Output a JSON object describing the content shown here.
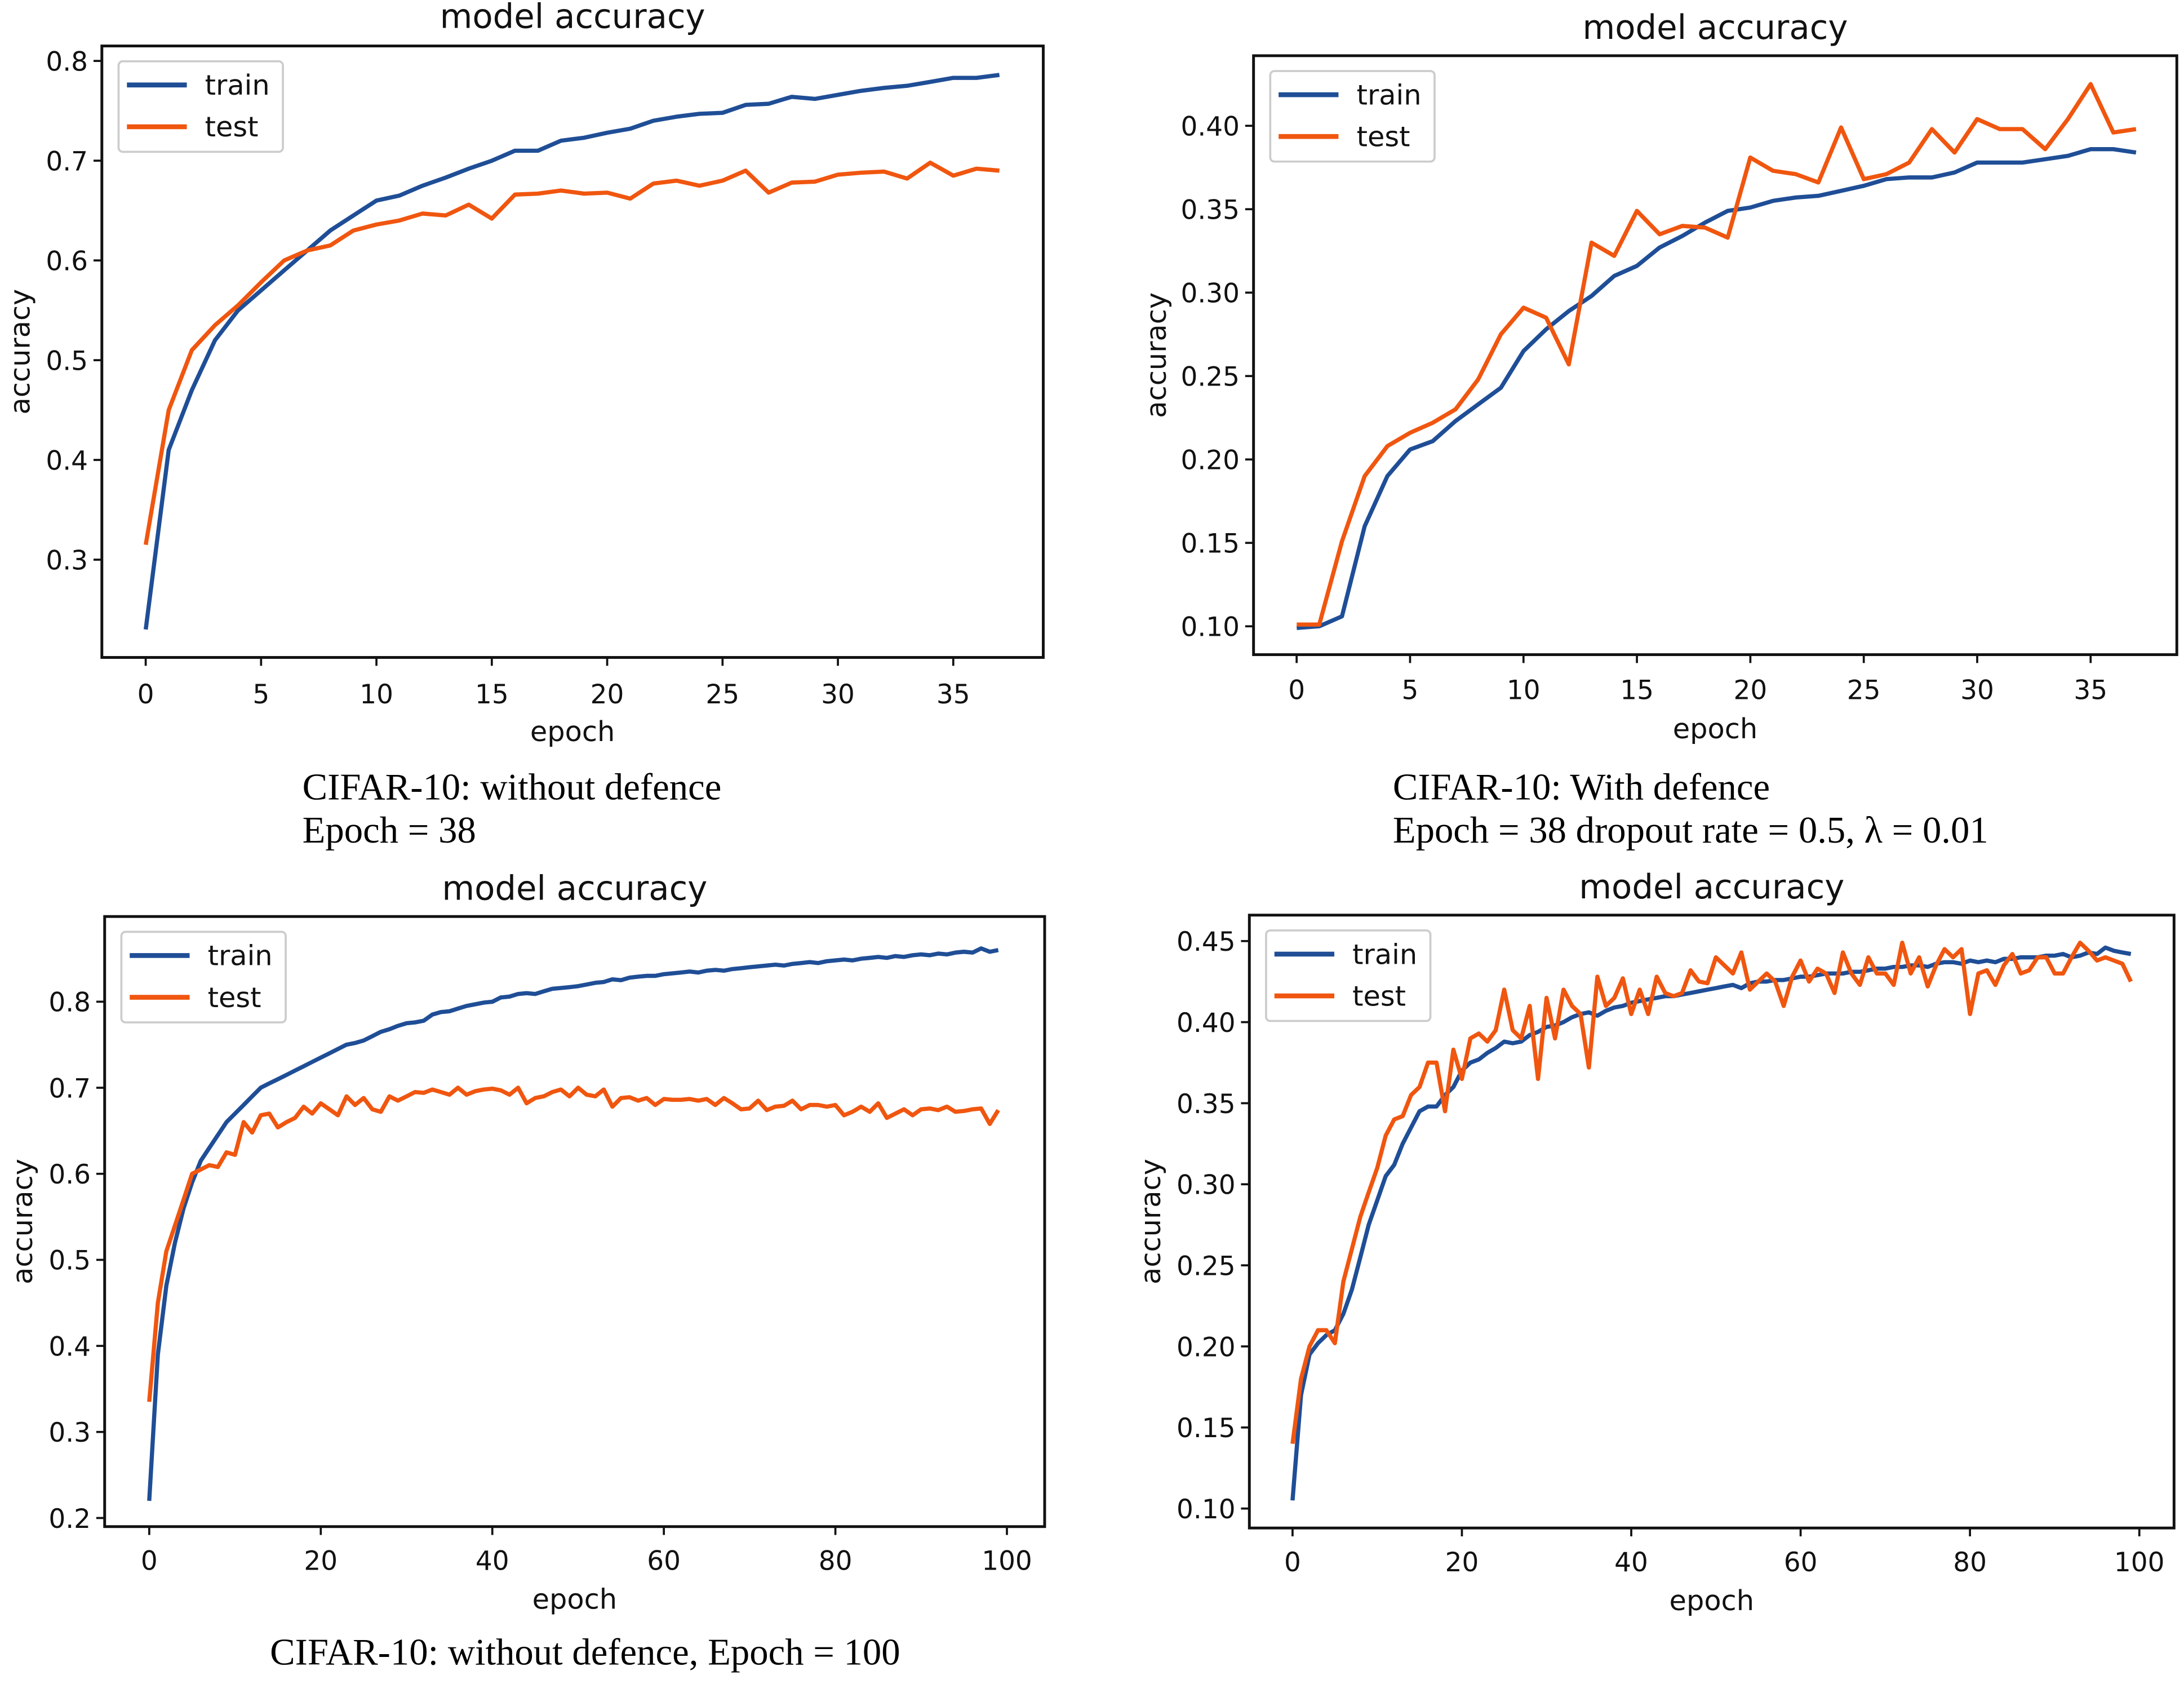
{
  "colors": {
    "train": "#1f4e96",
    "test": "#f0560f"
  },
  "captions": [
    [
      "CIFAR-10: without defence",
      "Epoch = 38"
    ],
    [
      "CIFAR-10: With defence",
      "Epoch = 38 dropout rate = 0.5, λ = 0.01"
    ],
    [
      "CIFAR-10: without defence, Epoch = 100"
    ],
    []
  ],
  "chart_data": [
    {
      "type": "line",
      "title": "model accuracy",
      "xlabel": "epoch",
      "ylabel": "accuracy",
      "xlim": [
        -1.9,
        38.9
      ],
      "ylim": [
        0.202,
        0.815
      ],
      "xticks": [
        0,
        5,
        10,
        15,
        20,
        25,
        30,
        35
      ],
      "yticks": [
        "0.3",
        "0.4",
        "0.5",
        "0.6",
        "0.7",
        "0.8"
      ],
      "legend": "top-left",
      "grid": false,
      "series": [
        {
          "name": "train",
          "values": [
            0.23,
            0.41,
            0.47,
            0.52,
            0.55,
            0.57,
            0.59,
            0.61,
            0.63,
            0.645,
            0.66,
            0.665,
            0.675,
            0.683,
            0.692,
            0.7,
            0.71,
            0.71,
            0.72,
            0.723,
            0.728,
            0.732,
            0.74,
            0.744,
            0.747,
            0.748,
            0.756,
            0.757,
            0.764,
            0.762,
            0.766,
            0.77,
            0.773,
            0.775,
            0.779,
            0.783,
            0.783,
            0.786
          ]
        },
        {
          "name": "test",
          "values": [
            0.315,
            0.45,
            0.51,
            0.535,
            0.555,
            0.578,
            0.6,
            0.61,
            0.615,
            0.63,
            0.636,
            0.64,
            0.647,
            0.645,
            0.656,
            0.642,
            0.666,
            0.667,
            0.67,
            0.667,
            0.668,
            0.662,
            0.677,
            0.68,
            0.675,
            0.68,
            0.69,
            0.668,
            0.678,
            0.679,
            0.686,
            0.688,
            0.689,
            0.682,
            0.698,
            0.685,
            0.692,
            0.69
          ]
        }
      ]
    },
    {
      "type": "line",
      "title": "model accuracy",
      "xlabel": "epoch",
      "ylabel": "accuracy",
      "xlim": [
        -1.9,
        38.8
      ],
      "ylim": [
        0.083,
        0.442
      ],
      "xticks": [
        0,
        5,
        10,
        15,
        20,
        25,
        30,
        35
      ],
      "yticks": [
        "0.10",
        "0.15",
        "0.20",
        "0.25",
        "0.30",
        "0.35",
        "0.40"
      ],
      "legend": "top-left",
      "grid": false,
      "series": [
        {
          "name": "train",
          "values": [
            0.099,
            0.1,
            0.106,
            0.16,
            0.19,
            0.206,
            0.211,
            0.223,
            0.233,
            0.243,
            0.265,
            0.278,
            0.289,
            0.298,
            0.31,
            0.316,
            0.327,
            0.334,
            0.342,
            0.349,
            0.351,
            0.355,
            0.357,
            0.358,
            0.361,
            0.364,
            0.368,
            0.369,
            0.369,
            0.372,
            0.378,
            0.378,
            0.378,
            0.38,
            0.382,
            0.386,
            0.386,
            0.384
          ]
        },
        {
          "name": "test",
          "values": [
            0.101,
            0.101,
            0.151,
            0.19,
            0.208,
            0.216,
            0.222,
            0.23,
            0.248,
            0.275,
            0.291,
            0.285,
            0.257,
            0.33,
            0.322,
            0.349,
            0.335,
            0.34,
            0.339,
            0.333,
            0.381,
            0.373,
            0.371,
            0.366,
            0.399,
            0.368,
            0.371,
            0.378,
            0.398,
            0.384,
            0.404,
            0.398,
            0.398,
            0.386,
            0.404,
            0.425,
            0.396,
            0.398
          ]
        }
      ]
    },
    {
      "type": "line",
      "title": "model accuracy",
      "xlabel": "epoch",
      "ylabel": "accuracy",
      "xlim": [
        -5.2,
        104.4
      ],
      "ylim": [
        0.19,
        0.899
      ],
      "xticks": [
        0,
        20,
        40,
        60,
        80,
        100
      ],
      "yticks": [
        "0.2",
        "0.3",
        "0.4",
        "0.5",
        "0.6",
        "0.7",
        "0.8"
      ],
      "legend": "top-left",
      "grid": false,
      "series": [
        {
          "name": "train",
          "values": [
            0.22,
            0.39,
            0.47,
            0.52,
            0.56,
            0.59,
            0.615,
            0.63,
            0.645,
            0.66,
            0.67,
            0.68,
            0.69,
            0.7,
            0.705,
            0.71,
            0.715,
            0.72,
            0.725,
            0.73,
            0.735,
            0.74,
            0.745,
            0.75,
            0.752,
            0.755,
            0.76,
            0.765,
            0.768,
            0.772,
            0.775,
            0.776,
            0.778,
            0.785,
            0.788,
            0.789,
            0.792,
            0.795,
            0.797,
            0.799,
            0.8,
            0.805,
            0.806,
            0.809,
            0.81,
            0.809,
            0.812,
            0.815,
            0.816,
            0.817,
            0.818,
            0.82,
            0.822,
            0.823,
            0.826,
            0.825,
            0.828,
            0.829,
            0.83,
            0.83,
            0.832,
            0.833,
            0.834,
            0.835,
            0.834,
            0.836,
            0.837,
            0.836,
            0.838,
            0.839,
            0.84,
            0.841,
            0.842,
            0.843,
            0.842,
            0.844,
            0.845,
            0.846,
            0.845,
            0.847,
            0.848,
            0.849,
            0.848,
            0.85,
            0.851,
            0.852,
            0.851,
            0.853,
            0.852,
            0.854,
            0.855,
            0.854,
            0.856,
            0.855,
            0.857,
            0.858,
            0.857,
            0.862,
            0.858,
            0.86
          ]
        },
        {
          "name": "test",
          "values": [
            0.335,
            0.45,
            0.51,
            0.54,
            0.57,
            0.6,
            0.605,
            0.61,
            0.608,
            0.625,
            0.622,
            0.66,
            0.648,
            0.668,
            0.67,
            0.654,
            0.66,
            0.665,
            0.678,
            0.67,
            0.682,
            0.675,
            0.668,
            0.69,
            0.68,
            0.688,
            0.675,
            0.672,
            0.69,
            0.685,
            0.69,
            0.695,
            0.694,
            0.698,
            0.695,
            0.692,
            0.7,
            0.692,
            0.696,
            0.698,
            0.699,
            0.697,
            0.692,
            0.7,
            0.682,
            0.688,
            0.69,
            0.695,
            0.698,
            0.69,
            0.7,
            0.692,
            0.69,
            0.698,
            0.678,
            0.688,
            0.689,
            0.685,
            0.688,
            0.68,
            0.687,
            0.686,
            0.686,
            0.687,
            0.685,
            0.687,
            0.68,
            0.688,
            0.682,
            0.675,
            0.676,
            0.685,
            0.674,
            0.678,
            0.679,
            0.685,
            0.675,
            0.68,
            0.68,
            0.678,
            0.68,
            0.668,
            0.672,
            0.678,
            0.672,
            0.682,
            0.665,
            0.67,
            0.675,
            0.668,
            0.675,
            0.676,
            0.674,
            0.678,
            0.672,
            0.673,
            0.675,
            0.676,
            0.658,
            0.674
          ]
        }
      ]
    },
    {
      "type": "line",
      "title": "model accuracy",
      "xlabel": "epoch",
      "ylabel": "accuracy",
      "xlim": [
        -5.1,
        104.1
      ],
      "ylim": [
        0.088,
        0.466
      ],
      "xticks": [
        0,
        20,
        40,
        60,
        80,
        100
      ],
      "yticks": [
        "0.10",
        "0.15",
        "0.20",
        "0.25",
        "0.30",
        "0.35",
        "0.40",
        "0.45"
      ],
      "legend": "top-left",
      "grid": false,
      "series": [
        {
          "name": "train",
          "values": [
            0.105,
            0.17,
            0.195,
            0.202,
            0.207,
            0.21,
            0.22,
            0.235,
            0.255,
            0.275,
            0.29,
            0.305,
            0.312,
            0.325,
            0.335,
            0.345,
            0.348,
            0.348,
            0.355,
            0.36,
            0.37,
            0.375,
            0.377,
            0.381,
            0.384,
            0.388,
            0.387,
            0.388,
            0.392,
            0.394,
            0.397,
            0.398,
            0.4,
            0.403,
            0.405,
            0.406,
            0.404,
            0.407,
            0.409,
            0.41,
            0.412,
            0.413,
            0.414,
            0.415,
            0.416,
            0.416,
            0.417,
            0.418,
            0.419,
            0.42,
            0.421,
            0.422,
            0.423,
            0.421,
            0.424,
            0.425,
            0.425,
            0.426,
            0.426,
            0.427,
            0.428,
            0.428,
            0.429,
            0.43,
            0.43,
            0.43,
            0.431,
            0.431,
            0.432,
            0.433,
            0.433,
            0.434,
            0.434,
            0.435,
            0.435,
            0.434,
            0.436,
            0.437,
            0.437,
            0.436,
            0.438,
            0.437,
            0.438,
            0.437,
            0.439,
            0.439,
            0.44,
            0.44,
            0.44,
            0.441,
            0.441,
            0.442,
            0.44,
            0.441,
            0.443,
            0.442,
            0.446,
            0.444,
            0.443,
            0.442
          ]
        },
        {
          "name": "test",
          "values": [
            0.14,
            0.18,
            0.2,
            0.21,
            0.21,
            0.202,
            0.24,
            0.26,
            0.28,
            0.295,
            0.31,
            0.33,
            0.34,
            0.342,
            0.355,
            0.36,
            0.375,
            0.375,
            0.345,
            0.383,
            0.365,
            0.39,
            0.393,
            0.388,
            0.395,
            0.42,
            0.395,
            0.39,
            0.41,
            0.365,
            0.415,
            0.39,
            0.42,
            0.41,
            0.405,
            0.372,
            0.428,
            0.41,
            0.415,
            0.427,
            0.405,
            0.42,
            0.405,
            0.428,
            0.418,
            0.416,
            0.418,
            0.432,
            0.425,
            0.424,
            0.44,
            0.435,
            0.43,
            0.443,
            0.42,
            0.425,
            0.43,
            0.425,
            0.41,
            0.428,
            0.438,
            0.425,
            0.433,
            0.43,
            0.418,
            0.443,
            0.43,
            0.423,
            0.44,
            0.43,
            0.43,
            0.423,
            0.449,
            0.43,
            0.44,
            0.422,
            0.435,
            0.445,
            0.44,
            0.445,
            0.405,
            0.43,
            0.432,
            0.423,
            0.435,
            0.442,
            0.43,
            0.432,
            0.44,
            0.44,
            0.43,
            0.43,
            0.44,
            0.449,
            0.444,
            0.438,
            0.44,
            0.438,
            0.436,
            0.425
          ]
        }
      ]
    }
  ]
}
